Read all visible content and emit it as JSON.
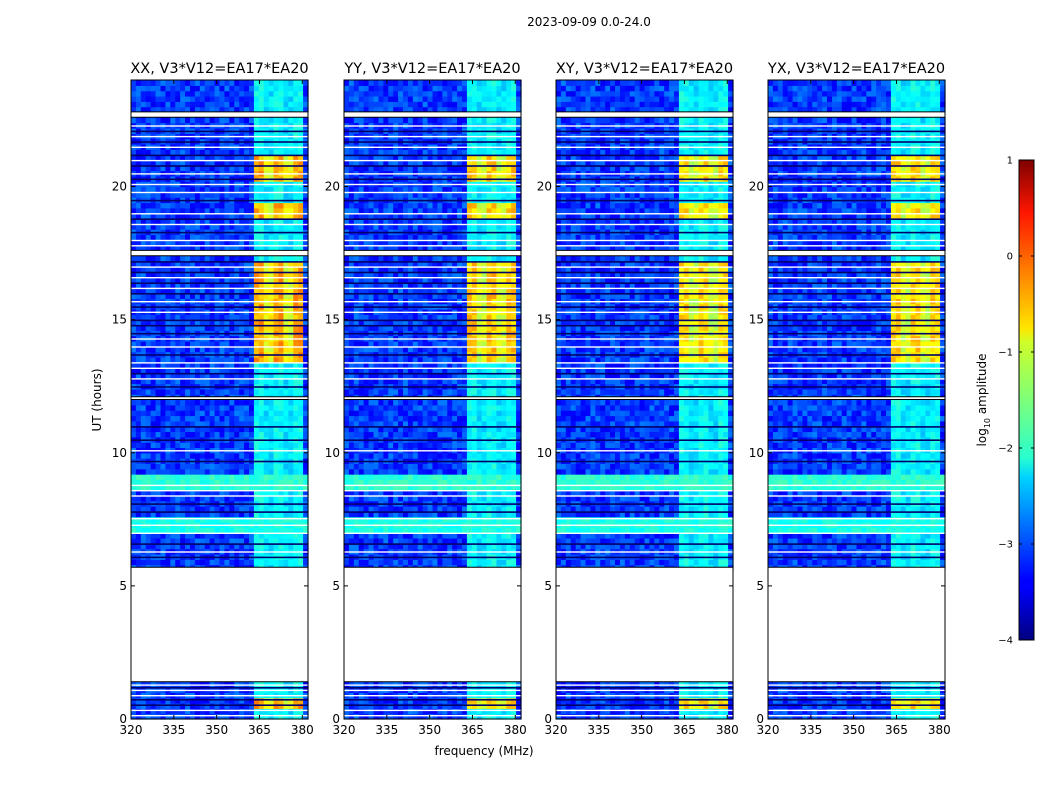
{
  "chart_data": {
    "type": "heatmap",
    "title": "2023-09-09 0.0-24.0",
    "xlabel": "frequency (MHz)",
    "ylabel": "UT (hours)",
    "xlim": [
      320,
      382
    ],
    "ylim": [
      0,
      24
    ],
    "x_ticks": [
      320,
      335,
      350,
      365,
      380
    ],
    "y_ticks": [
      0,
      5,
      10,
      15,
      20
    ],
    "panels": [
      {
        "title": "XX, V3*V12=EA17*EA20"
      },
      {
        "title": "YY, V3*V12=EA17*EA20"
      },
      {
        "title": "XY, V3*V12=EA17*EA20"
      },
      {
        "title": "YX, V3*V12=EA17*EA20"
      }
    ],
    "colorbar": {
      "label": "log",
      "label_sub": "10",
      "label_rest": " amplitude",
      "range": [
        -4,
        1
      ],
      "ticks": [
        1,
        0,
        -1,
        -2,
        -3,
        -4
      ],
      "colormap": "jet"
    },
    "no_data_time_ranges_h": [
      [
        1.4,
        5.7
      ],
      [
        12.0,
        12.1
      ],
      [
        17.4,
        17.6
      ],
      [
        22.6,
        22.8
      ]
    ],
    "rfi_band_mhz": [
      363,
      380
    ],
    "strong_rfi_time_ranges_h": [
      [
        13.5,
        17.3
      ],
      [
        18.9,
        19.4
      ],
      [
        20.2,
        21.3
      ],
      [
        0.4,
        0.8
      ]
    ]
  }
}
